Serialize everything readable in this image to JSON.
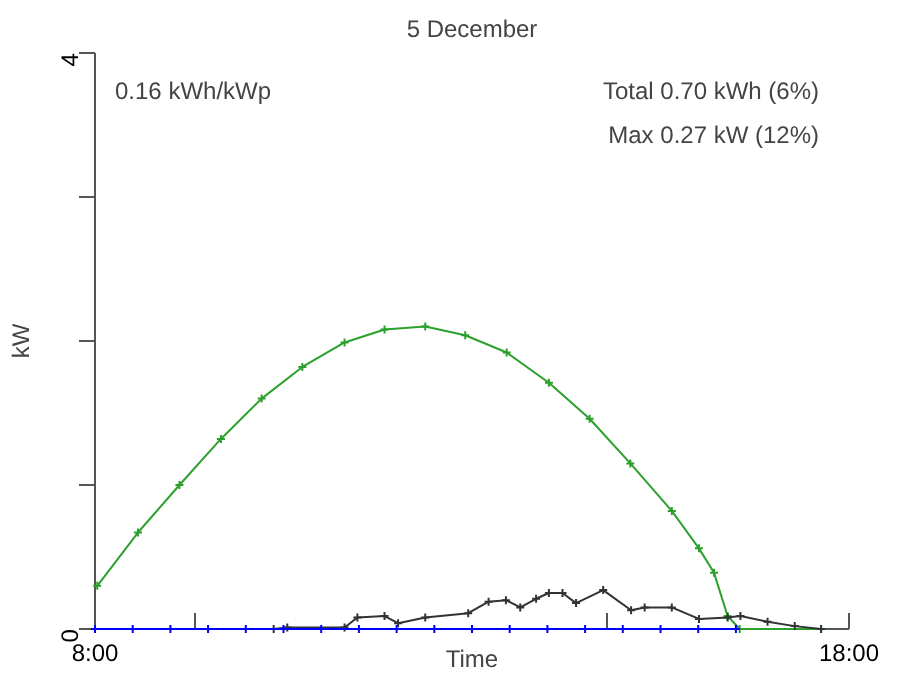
{
  "chart_data": {
    "type": "line",
    "title": "5 December",
    "xlabel": "Time",
    "ylabel": "kW",
    "annotations": [
      "0.16 kWh/kWp",
      "Total 0.70 kWh (6%)",
      "Max 0.27 kW (12%)"
    ],
    "xlim": [
      8,
      18
    ],
    "ylim": [
      0,
      4
    ],
    "xticks": [
      {
        "value": 8,
        "label": "8:00"
      },
      {
        "value": 9.33,
        "label": null
      },
      {
        "value": 14.78,
        "label": null
      },
      {
        "value": 18,
        "label": "18:00"
      }
    ],
    "yticks": [
      0,
      {
        "value": 1,
        "label": null
      },
      {
        "value": 2,
        "label": null
      },
      {
        "value": 3,
        "label": null
      },
      4
    ],
    "grid": false,
    "marker": "cross",
    "line_style": "solid",
    "series": [
      {
        "color": "#2ca02c",
        "x": [
          8.03,
          8.57,
          9.12,
          9.67,
          10.21,
          10.75,
          11.31,
          11.84,
          12.38,
          12.91,
          13.46,
          14.02,
          14.56,
          15.1,
          15.65,
          16.01,
          16.21,
          16.39,
          16.55,
          17.63
        ],
        "values": [
          0.3,
          0.67,
          1.0,
          1.32,
          1.6,
          1.82,
          1.99,
          2.08,
          2.1,
          2.04,
          1.92,
          1.71,
          1.46,
          1.15,
          0.82,
          0.56,
          0.39,
          0.09,
          0.0,
          0.0
        ]
      },
      {
        "color": "#333333",
        "x": [
          10.37,
          10.55,
          11.31,
          11.48,
          11.84,
          12.02,
          12.38,
          12.95,
          13.22,
          13.45,
          13.64,
          13.85,
          14.02,
          14.2,
          14.38,
          14.74,
          15.11,
          15.29,
          15.65,
          16.01,
          16.39,
          16.56,
          16.92,
          17.28,
          17.63
        ],
        "values": [
          0.0,
          0.01,
          0.01,
          0.08,
          0.09,
          0.04,
          0.08,
          0.11,
          0.19,
          0.2,
          0.15,
          0.21,
          0.25,
          0.25,
          0.18,
          0.27,
          0.13,
          0.15,
          0.15,
          0.07,
          0.08,
          0.09,
          0.05,
          0.02,
          0.0
        ]
      },
      {
        "color": "#0000ff",
        "x": [
          8.0,
          8.5,
          9.0,
          9.5,
          10.0,
          10.5,
          11.0,
          11.5,
          12.0,
          12.5,
          13.0,
          13.5,
          14.0,
          14.5,
          15.0,
          15.5,
          16.0,
          16.5
        ],
        "values": [
          0,
          0,
          0,
          0,
          0,
          0,
          0,
          0,
          0,
          0,
          0,
          0,
          0,
          0,
          0,
          0,
          0,
          0
        ]
      }
    ]
  }
}
